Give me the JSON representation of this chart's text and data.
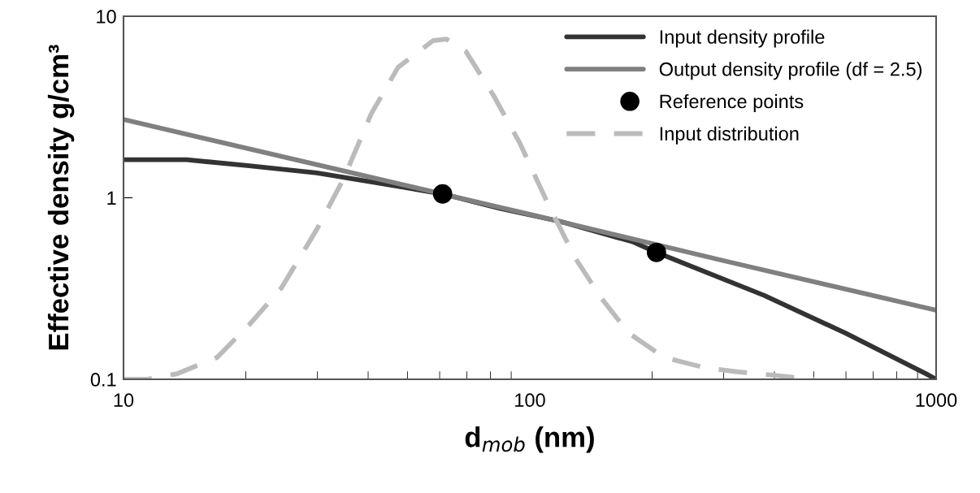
{
  "chart_data": {
    "type": "line",
    "xlabel": "d$_{mob}$ (nm)",
    "ylabel": "Effective density g/cm³",
    "log": "xy",
    "xlim": [
      10,
      1000
    ],
    "xticks": [
      10,
      100,
      1000
    ],
    "ylim": [
      0.1,
      10
    ],
    "yticks": [
      0.1,
      1,
      10
    ],
    "grid": false,
    "legend": "top right",
    "series": [
      {
        "name": "Input density profile",
        "color": "#333333",
        "line_style": "solid",
        "marker": "none",
        "x": [
          10,
          14.3,
          20.4,
          29.9,
          43.9,
          61,
          85,
          119,
          180,
          205,
          377,
          597,
          946,
          1000
        ],
        "values": [
          1.62,
          1.62,
          1.5,
          1.37,
          1.19,
          1.05,
          0.87,
          0.74,
          0.57,
          0.5,
          0.29,
          0.18,
          0.107,
          0.1
        ]
      },
      {
        "name": "Output density profile (df = 2.5)",
        "color": "#808080",
        "line_style": "solid",
        "marker": "none",
        "x": [
          10,
          30,
          100,
          300,
          1000
        ],
        "values": [
          2.7,
          1.52,
          0.81,
          0.45,
          0.24
        ]
      },
      {
        "name": "Reference points",
        "color": "#000000",
        "type": "scatter",
        "marker": "circle",
        "x": [
          61,
          205
        ],
        "values": [
          1.05,
          0.5
        ]
      },
      {
        "name": "Input distribution",
        "color": "#bbbbbb",
        "line_style": "dashed",
        "marker": "none",
        "x": [
          10,
          11.4,
          13.5,
          17.0,
          20.4,
          24.5,
          29.9,
          34.8,
          40.7,
          47.4,
          57.8,
          62.3,
          69.5,
          81.3,
          94.6,
          110,
          129,
          150,
          175,
          214,
          269,
          324,
          500
        ],
        "values": [
          0.1,
          0.1,
          0.107,
          0.132,
          0.2,
          0.32,
          0.67,
          1.27,
          2.9,
          5.23,
          7.34,
          7.49,
          6.43,
          3.68,
          1.99,
          0.96,
          0.47,
          0.28,
          0.18,
          0.132,
          0.116,
          0.11,
          0.1
        ]
      }
    ]
  }
}
